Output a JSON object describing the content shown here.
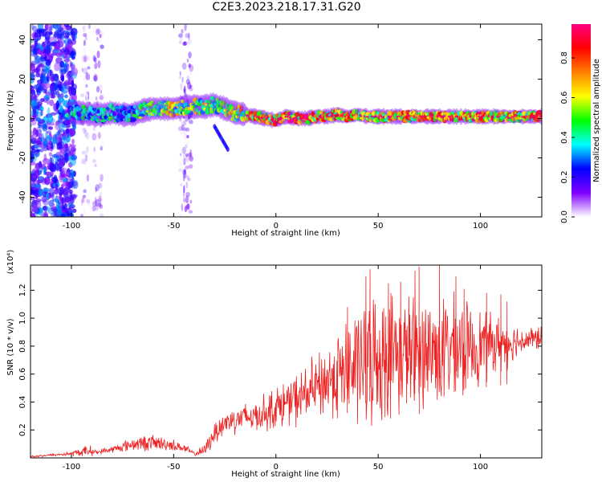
{
  "title": "C2E3.2023.218.17.31.G20",
  "chart_data": [
    {
      "type": "heatmap",
      "title": "C2E3.2023.218.17.31.G20",
      "xlabel": "Height of straight line (km)",
      "ylabel": "Frequency (Hz)",
      "xlim": [
        -120,
        130
      ],
      "ylim": [
        -50,
        48
      ],
      "x_ticks": [
        -100,
        -50,
        0,
        50,
        100
      ],
      "y_ticks": [
        -40,
        -20,
        0,
        20,
        40
      ],
      "colorbar": {
        "label": "Normalized spectral amplitude",
        "range": [
          0,
          0.97
        ],
        "ticks": [
          0.0,
          0.2,
          0.4,
          0.6,
          0.8
        ],
        "colors": [
          "#ffffff",
          "#8000ff",
          "#0000ff",
          "#00ffff",
          "#00ff00",
          "#ffff00",
          "#ff8000",
          "#ff0000",
          "#ff0080"
        ]
      },
      "ridge": {
        "x": [
          -102,
          -95,
          -90,
          -85,
          -80,
          -75,
          -70,
          -65,
          -60,
          -55,
          -50,
          -45,
          -40,
          -35,
          -30,
          -25,
          -20,
          -15,
          -10,
          -5,
          0,
          5,
          10,
          15,
          20,
          25,
          30,
          35,
          40,
          45,
          50,
          55,
          60,
          65,
          70,
          75,
          80,
          85,
          90,
          95,
          100,
          105,
          110,
          115,
          120,
          125,
          130
        ],
        "y": [
          3,
          3,
          2,
          2,
          3,
          2,
          2,
          4,
          5,
          5,
          5,
          6,
          6,
          6,
          7,
          5,
          3,
          2,
          1,
          0,
          -1,
          1,
          0,
          0,
          1,
          1,
          2,
          1,
          2,
          1,
          1,
          1,
          1,
          1,
          1,
          1,
          1,
          1,
          1,
          1,
          1,
          1,
          1,
          1,
          1,
          1,
          1
        ],
        "amplitude": [
          0.35,
          0.45,
          0.4,
          0.4,
          0.45,
          0.4,
          0.45,
          0.55,
          0.6,
          0.65,
          0.65,
          0.6,
          0.6,
          0.62,
          0.55,
          0.6,
          0.65,
          0.7,
          0.75,
          0.8,
          0.85,
          0.9,
          0.9,
          0.88,
          0.85,
          0.8,
          0.75,
          0.78,
          0.72,
          0.75,
          0.8,
          0.78,
          0.8,
          0.75,
          0.8,
          0.78,
          0.85,
          0.82,
          0.8,
          0.78,
          0.8,
          0.78,
          0.75,
          0.8,
          0.78,
          0.8,
          0.82
        ]
      }
    },
    {
      "type": "line",
      "xlabel": "Height of straight line (km)",
      "ylabel": "SNR (10 * v/v)",
      "y_multiplier": "(x10⁴)",
      "xlim": [
        -120,
        130
      ],
      "ylim": [
        0,
        1.38
      ],
      "x_ticks": [
        -100,
        -50,
        0,
        50,
        100
      ],
      "y_ticks": [
        0.2,
        0.4,
        0.6,
        0.8,
        1.0,
        1.2
      ],
      "line_color": "#ee2222",
      "envelope": {
        "x": [
          -120,
          -110,
          -100,
          -92,
          -90,
          -88,
          -80,
          -70,
          -60,
          -50,
          -45,
          -40,
          -35,
          -30,
          -25,
          -20,
          -10,
          0,
          10,
          20,
          25,
          30,
          35,
          40,
          45,
          50,
          55,
          60,
          70,
          80,
          90,
          100,
          110,
          120,
          130
        ],
        "mean": [
          0.01,
          0.02,
          0.03,
          0.05,
          0.05,
          0.04,
          0.06,
          0.1,
          0.11,
          0.09,
          0.07,
          0.03,
          0.05,
          0.18,
          0.25,
          0.28,
          0.3,
          0.36,
          0.42,
          0.5,
          0.55,
          0.6,
          0.62,
          0.66,
          0.7,
          0.72,
          0.74,
          0.75,
          0.76,
          0.77,
          0.78,
          0.8,
          0.82,
          0.84,
          0.86
        ],
        "spread": [
          0.01,
          0.01,
          0.02,
          0.05,
          0.04,
          0.02,
          0.03,
          0.06,
          0.07,
          0.05,
          0.04,
          0.02,
          0.05,
          0.1,
          0.12,
          0.12,
          0.14,
          0.18,
          0.22,
          0.28,
          0.32,
          0.38,
          0.45,
          0.5,
          0.55,
          0.55,
          0.55,
          0.5,
          0.5,
          0.48,
          0.42,
          0.32,
          0.22,
          0.12,
          0.1
        ]
      },
      "peaks": [
        {
          "x": 35,
          "y": 1.08
        },
        {
          "x": 44,
          "y": 1.3
        },
        {
          "x": 46,
          "y": 1.35
        },
        {
          "x": 55,
          "y": 1.25
        },
        {
          "x": 61,
          "y": 1.26
        },
        {
          "x": 68,
          "y": 1.34
        },
        {
          "x": 70,
          "y": 1.37
        },
        {
          "x": 80,
          "y": 1.38
        },
        {
          "x": 88,
          "y": 1.3
        },
        {
          "x": 103,
          "y": 1.18
        },
        {
          "x": 110,
          "y": 1.17
        },
        {
          "x": 113,
          "y": 1.12
        },
        {
          "x": 92,
          "y": 1.21
        }
      ]
    }
  ]
}
